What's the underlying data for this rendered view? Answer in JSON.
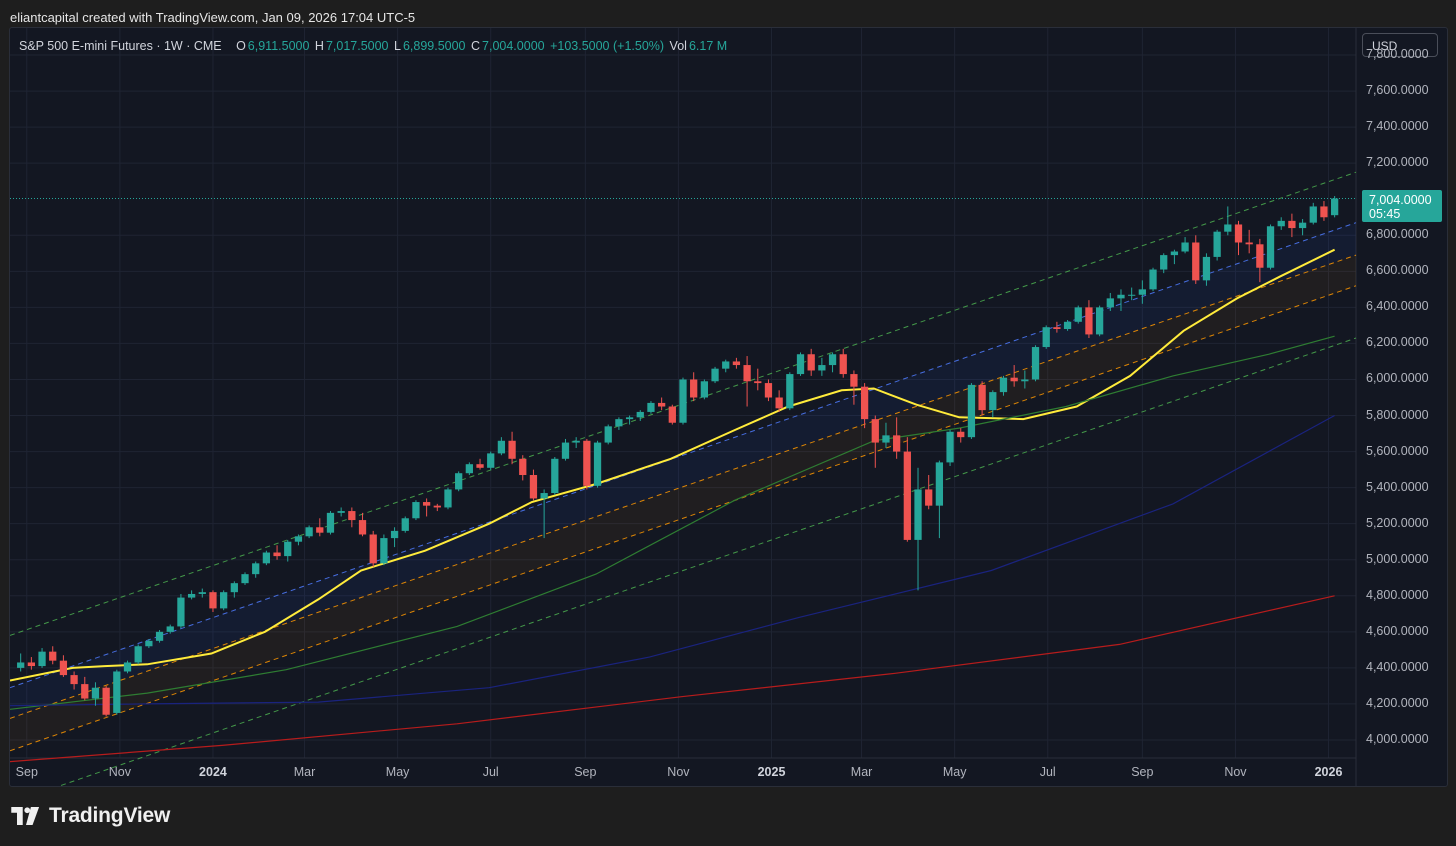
{
  "credit": "eliantcapital created with TradingView.com, Jan 09, 2026 17:04 UTC-5",
  "brand": {
    "name": "TradingView",
    "logo_icon": "tradingview-logo-icon"
  },
  "legend": {
    "title": "S&P 500 E-mini Futures · 1W · CME",
    "open_label": "O",
    "open": "6,911.5000",
    "high_label": "H",
    "high": "7,017.5000",
    "low_label": "L",
    "low": "6,899.5000",
    "close_label": "C",
    "close": "7,004.0000",
    "change": "+103.5000 (+1.50%)",
    "vol_label": "Vol",
    "vol": "6.17 M"
  },
  "currency_button": "USD",
  "last_price": {
    "price": "7,004.0000",
    "countdown": "05:45",
    "value": 7004
  },
  "colors": {
    "up": "#26a69a",
    "down": "#ef5350",
    "background": "#131722",
    "ma_yellow": "#ffeb3b",
    "ma_green": "#2e7d32",
    "ma_blue": "#1a237e",
    "ma_red": "#b71c1c"
  },
  "y_axis_ticks": [
    "7,800.0000",
    "7,600.0000",
    "7,400.0000",
    "7,200.0000",
    "6,800.0000",
    "6,600.0000",
    "6,400.0000",
    "6,200.0000",
    "6,000.0000",
    "5,800.0000",
    "5,600.0000",
    "5,400.0000",
    "5,200.0000",
    "5,000.0000",
    "4,800.0000",
    "4,600.0000",
    "4,400.0000",
    "4,200.0000",
    "4,000.0000"
  ],
  "x_axis_ticks": [
    {
      "label": "Sep",
      "bold": false
    },
    {
      "label": "Nov",
      "bold": false
    },
    {
      "label": "2024",
      "bold": true
    },
    {
      "label": "Mar",
      "bold": false
    },
    {
      "label": "May",
      "bold": false
    },
    {
      "label": "Jul",
      "bold": false
    },
    {
      "label": "Sep",
      "bold": false
    },
    {
      "label": "Nov",
      "bold": false
    },
    {
      "label": "2025",
      "bold": true
    },
    {
      "label": "Mar",
      "bold": false
    },
    {
      "label": "May",
      "bold": false
    },
    {
      "label": "Jul",
      "bold": false
    },
    {
      "label": "Sep",
      "bold": false
    },
    {
      "label": "Nov",
      "bold": false
    },
    {
      "label": "2026",
      "bold": true
    }
  ],
  "chart_data": {
    "type": "candlestick",
    "interval": "1W",
    "y_range": [
      3900,
      7950
    ],
    "x_range": [
      "2023-08-21",
      "2026-01-19"
    ],
    "candles": [
      [
        "2023-08-28",
        4400,
        4480,
        4380,
        4430
      ],
      [
        "2023-09-04",
        4430,
        4460,
        4390,
        4410
      ],
      [
        "2023-09-11",
        4410,
        4510,
        4400,
        4490
      ],
      [
        "2023-09-18",
        4490,
        4520,
        4420,
        4440
      ],
      [
        "2023-09-25",
        4440,
        4470,
        4350,
        4360
      ],
      [
        "2023-10-02",
        4360,
        4380,
        4280,
        4310
      ],
      [
        "2023-10-09",
        4310,
        4350,
        4220,
        4230
      ],
      [
        "2023-10-16",
        4230,
        4320,
        4190,
        4290
      ],
      [
        "2023-10-23",
        4290,
        4300,
        4130,
        4140
      ],
      [
        "2023-10-30",
        4150,
        4390,
        4140,
        4380
      ],
      [
        "2023-11-06",
        4380,
        4440,
        4370,
        4430
      ],
      [
        "2023-11-13",
        4430,
        4530,
        4420,
        4520
      ],
      [
        "2023-11-20",
        4520,
        4560,
        4510,
        4550
      ],
      [
        "2023-11-27",
        4550,
        4610,
        4540,
        4600
      ],
      [
        "2023-12-04",
        4600,
        4640,
        4590,
        4630
      ],
      [
        "2023-12-11",
        4630,
        4810,
        4620,
        4790
      ],
      [
        "2023-12-18",
        4790,
        4830,
        4780,
        4810
      ],
      [
        "2023-12-25",
        4810,
        4840,
        4790,
        4820
      ],
      [
        "2024-01-01",
        4820,
        4830,
        4710,
        4730
      ],
      [
        "2024-01-08",
        4730,
        4830,
        4720,
        4820
      ],
      [
        "2024-01-15",
        4820,
        4880,
        4790,
        4870
      ],
      [
        "2024-01-22",
        4870,
        4930,
        4860,
        4920
      ],
      [
        "2024-01-29",
        4920,
        4990,
        4900,
        4980
      ],
      [
        "2024-02-05",
        4980,
        5050,
        4970,
        5040
      ],
      [
        "2024-02-12",
        5040,
        5080,
        5000,
        5020
      ],
      [
        "2024-02-19",
        5020,
        5110,
        4990,
        5100
      ],
      [
        "2024-02-26",
        5100,
        5140,
        5080,
        5130
      ],
      [
        "2024-03-04",
        5130,
        5190,
        5120,
        5180
      ],
      [
        "2024-03-11",
        5180,
        5230,
        5130,
        5150
      ],
      [
        "2024-03-18",
        5150,
        5270,
        5140,
        5260
      ],
      [
        "2024-03-25",
        5260,
        5290,
        5240,
        5270
      ],
      [
        "2024-04-01",
        5270,
        5290,
        5180,
        5220
      ],
      [
        "2024-04-08",
        5220,
        5260,
        5130,
        5140
      ],
      [
        "2024-04-15",
        5140,
        5160,
        4960,
        4980
      ],
      [
        "2024-04-22",
        4980,
        5140,
        4970,
        5120
      ],
      [
        "2024-04-29",
        5120,
        5180,
        5070,
        5160
      ],
      [
        "2024-05-06",
        5160,
        5240,
        5150,
        5230
      ],
      [
        "2024-05-13",
        5230,
        5330,
        5220,
        5320
      ],
      [
        "2024-05-20",
        5320,
        5340,
        5240,
        5300
      ],
      [
        "2024-05-27",
        5300,
        5310,
        5270,
        5290
      ],
      [
        "2024-06-03",
        5290,
        5400,
        5280,
        5390
      ],
      [
        "2024-06-10",
        5390,
        5490,
        5380,
        5480
      ],
      [
        "2024-06-17",
        5480,
        5540,
        5470,
        5530
      ],
      [
        "2024-06-24",
        5530,
        5560,
        5500,
        5510
      ],
      [
        "2024-07-01",
        5510,
        5600,
        5500,
        5590
      ],
      [
        "2024-07-08",
        5590,
        5680,
        5580,
        5660
      ],
      [
        "2024-07-15",
        5660,
        5710,
        5530,
        5560
      ],
      [
        "2024-07-22",
        5560,
        5580,
        5440,
        5470
      ],
      [
        "2024-07-29",
        5470,
        5500,
        5330,
        5340
      ],
      [
        "2024-08-05",
        5340,
        5390,
        5120,
        5370
      ],
      [
        "2024-08-12",
        5370,
        5570,
        5360,
        5560
      ],
      [
        "2024-08-19",
        5560,
        5670,
        5550,
        5650
      ],
      [
        "2024-08-26",
        5650,
        5680,
        5620,
        5660
      ],
      [
        "2024-09-02",
        5660,
        5670,
        5390,
        5410
      ],
      [
        "2024-09-09",
        5410,
        5660,
        5400,
        5650
      ],
      [
        "2024-09-16",
        5650,
        5750,
        5640,
        5740
      ],
      [
        "2024-09-23",
        5740,
        5790,
        5720,
        5780
      ],
      [
        "2024-09-30",
        5780,
        5800,
        5750,
        5790
      ],
      [
        "2024-10-07",
        5790,
        5830,
        5770,
        5820
      ],
      [
        "2024-10-14",
        5820,
        5880,
        5810,
        5870
      ],
      [
        "2024-10-21",
        5870,
        5900,
        5830,
        5850
      ],
      [
        "2024-10-28",
        5850,
        5860,
        5750,
        5760
      ],
      [
        "2024-11-04",
        5760,
        6010,
        5750,
        6000
      ],
      [
        "2024-11-11",
        6000,
        6040,
        5880,
        5900
      ],
      [
        "2024-11-18",
        5900,
        6000,
        5890,
        5990
      ],
      [
        "2024-11-25",
        5990,
        6070,
        5980,
        6060
      ],
      [
        "2024-12-02",
        6060,
        6110,
        6040,
        6100
      ],
      [
        "2024-12-09",
        6100,
        6120,
        6060,
        6080
      ],
      [
        "2024-12-16",
        6080,
        6130,
        5850,
        5990
      ],
      [
        "2024-12-23",
        5990,
        6060,
        5940,
        5980
      ],
      [
        "2024-12-30",
        5980,
        6000,
        5880,
        5900
      ],
      [
        "2025-01-06",
        5900,
        5940,
        5820,
        5840
      ],
      [
        "2025-01-13",
        5840,
        6040,
        5830,
        6030
      ],
      [
        "2025-01-20",
        6030,
        6150,
        6020,
        6140
      ],
      [
        "2025-01-27",
        6140,
        6170,
        6020,
        6050
      ],
      [
        "2025-02-03",
        6050,
        6120,
        6020,
        6080
      ],
      [
        "2025-02-10",
        6080,
        6150,
        6040,
        6140
      ],
      [
        "2025-02-17",
        6140,
        6170,
        6010,
        6030
      ],
      [
        "2025-02-24",
        6030,
        6050,
        5860,
        5960
      ],
      [
        "2025-03-03",
        5960,
        5980,
        5730,
        5780
      ],
      [
        "2025-03-10",
        5780,
        5800,
        5510,
        5650
      ],
      [
        "2025-03-17",
        5650,
        5760,
        5620,
        5690
      ],
      [
        "2025-03-24",
        5690,
        5790,
        5560,
        5600
      ],
      [
        "2025-03-31",
        5600,
        5680,
        5100,
        5110
      ],
      [
        "2025-04-07",
        5110,
        5510,
        4830,
        5390
      ],
      [
        "2025-04-14",
        5390,
        5470,
        5280,
        5300
      ],
      [
        "2025-04-21",
        5300,
        5550,
        5120,
        5540
      ],
      [
        "2025-04-28",
        5540,
        5720,
        5520,
        5710
      ],
      [
        "2025-05-05",
        5710,
        5730,
        5650,
        5680
      ],
      [
        "2025-05-12",
        5680,
        5980,
        5670,
        5970
      ],
      [
        "2025-05-19",
        5970,
        5990,
        5800,
        5830
      ],
      [
        "2025-05-26",
        5830,
        5940,
        5790,
        5930
      ],
      [
        "2025-06-02",
        5930,
        6020,
        5910,
        6010
      ],
      [
        "2025-06-09",
        6010,
        6080,
        5960,
        5990
      ],
      [
        "2025-06-16",
        5990,
        6050,
        5950,
        6000
      ],
      [
        "2025-06-23",
        6000,
        6190,
        5990,
        6180
      ],
      [
        "2025-06-30",
        6180,
        6300,
        6170,
        6290
      ],
      [
        "2025-07-07",
        6290,
        6320,
        6260,
        6280
      ],
      [
        "2025-07-14",
        6280,
        6330,
        6270,
        6320
      ],
      [
        "2025-07-21",
        6320,
        6410,
        6310,
        6400
      ],
      [
        "2025-07-28",
        6400,
        6440,
        6230,
        6250
      ],
      [
        "2025-08-04",
        6250,
        6410,
        6240,
        6400
      ],
      [
        "2025-08-11",
        6400,
        6480,
        6380,
        6450
      ],
      [
        "2025-08-18",
        6450,
        6500,
        6380,
        6470
      ],
      [
        "2025-08-25",
        6470,
        6510,
        6440,
        6470
      ],
      [
        "2025-09-01",
        6470,
        6550,
        6420,
        6500
      ],
      [
        "2025-09-08",
        6500,
        6620,
        6490,
        6610
      ],
      [
        "2025-09-15",
        6610,
        6700,
        6590,
        6690
      ],
      [
        "2025-09-22",
        6690,
        6720,
        6640,
        6710
      ],
      [
        "2025-09-29",
        6710,
        6790,
        6700,
        6760
      ],
      [
        "2025-10-06",
        6760,
        6800,
        6530,
        6550
      ],
      [
        "2025-10-13",
        6550,
        6700,
        6520,
        6680
      ],
      [
        "2025-10-20",
        6680,
        6830,
        6660,
        6820
      ],
      [
        "2025-10-27",
        6820,
        6960,
        6800,
        6860
      ],
      [
        "2025-11-03",
        6860,
        6880,
        6690,
        6760
      ],
      [
        "2025-11-10",
        6760,
        6830,
        6700,
        6750
      ],
      [
        "2025-11-17",
        6750,
        6780,
        6540,
        6620
      ],
      [
        "2025-11-24",
        6620,
        6860,
        6610,
        6850
      ],
      [
        "2025-12-01",
        6850,
        6900,
        6830,
        6880
      ],
      [
        "2025-12-08",
        6880,
        6920,
        6790,
        6840
      ],
      [
        "2025-12-15",
        6840,
        6890,
        6800,
        6870
      ],
      [
        "2025-12-22",
        6870,
        6980,
        6860,
        6960
      ],
      [
        "2025-12-29",
        6960,
        6990,
        6880,
        6900
      ],
      [
        "2026-01-05",
        6911.5,
        7017.5,
        6899.5,
        7004
      ]
    ],
    "moving_averages": [
      {
        "color": "#ffeb3b",
        "points": [
          [
            "2023-08-21",
            4330
          ],
          [
            "2023-10-01",
            4400
          ],
          [
            "2023-10-22",
            4410
          ],
          [
            "2023-11-19",
            4420
          ],
          [
            "2023-12-31",
            4480
          ],
          [
            "2024-02-04",
            4600
          ],
          [
            "2024-03-10",
            4780
          ],
          [
            "2024-04-07",
            4940
          ],
          [
            "2024-05-19",
            5050
          ],
          [
            "2024-06-30",
            5200
          ],
          [
            "2024-07-28",
            5320
          ],
          [
            "2024-09-08",
            5420
          ],
          [
            "2024-10-27",
            5560
          ],
          [
            "2024-12-08",
            5720
          ],
          [
            "2025-01-12",
            5850
          ],
          [
            "2025-02-16",
            5940
          ],
          [
            "2025-03-09",
            5950
          ],
          [
            "2025-04-06",
            5860
          ],
          [
            "2025-05-04",
            5790
          ],
          [
            "2025-06-15",
            5780
          ],
          [
            "2025-07-20",
            5850
          ],
          [
            "2025-08-24",
            6020
          ],
          [
            "2025-09-28",
            6270
          ],
          [
            "2025-11-02",
            6450
          ],
          [
            "2025-11-30",
            6570
          ],
          [
            "2026-01-05",
            6720
          ]
        ]
      },
      {
        "color": "#2e7d32",
        "points": [
          [
            "2023-08-21",
            4170
          ],
          [
            "2023-11-19",
            4260
          ],
          [
            "2024-02-18",
            4390
          ],
          [
            "2024-06-09",
            4630
          ],
          [
            "2024-09-08",
            4920
          ],
          [
            "2024-12-08",
            5330
          ],
          [
            "2025-03-09",
            5660
          ],
          [
            "2025-05-04",
            5730
          ],
          [
            "2025-07-13",
            5850
          ],
          [
            "2025-09-21",
            6020
          ],
          [
            "2025-11-23",
            6140
          ],
          [
            "2026-01-05",
            6240
          ]
        ]
      },
      {
        "color": "#1a237e",
        "points": [
          [
            "2023-08-21",
            4190
          ],
          [
            "2023-11-19",
            4200
          ],
          [
            "2024-03-10",
            4210
          ],
          [
            "2024-06-30",
            4290
          ],
          [
            "2024-10-13",
            4460
          ],
          [
            "2025-01-19",
            4680
          ],
          [
            "2025-05-25",
            4940
          ],
          [
            "2025-09-21",
            5310
          ],
          [
            "2026-01-05",
            5800
          ]
        ]
      },
      {
        "color": "#b71c1c",
        "points": [
          [
            "2023-08-21",
            3880
          ],
          [
            "2024-01-07",
            3970
          ],
          [
            "2024-06-09",
            4090
          ],
          [
            "2024-11-03",
            4240
          ],
          [
            "2025-03-23",
            4370
          ],
          [
            "2025-08-17",
            4530
          ],
          [
            "2026-01-05",
            4800
          ]
        ]
      }
    ],
    "channel_lines": [
      {
        "style": "dashed",
        "color": "#4caf50",
        "from": [
          "2023-08-21",
          4580
        ],
        "to": [
          "2026-01-19",
          7150
        ]
      },
      {
        "style": "dashed",
        "color": "#4f7cff",
        "from": [
          "2023-08-21",
          4290
        ],
        "to": [
          "2026-01-19",
          6870
        ]
      },
      {
        "style": "dashed",
        "color": "#ff9800",
        "from": [
          "2023-08-21",
          4120
        ],
        "to": [
          "2026-01-19",
          6690
        ]
      },
      {
        "style": "dashed",
        "color": "#ff9800",
        "from": [
          "2023-08-21",
          3940
        ],
        "to": [
          "2026-01-19",
          6520
        ]
      },
      {
        "style": "dashed",
        "color": "#4caf50",
        "from": [
          "2023-08-21",
          3650
        ],
        "to": [
          "2026-01-19",
          6230
        ]
      }
    ],
    "grid": true
  }
}
